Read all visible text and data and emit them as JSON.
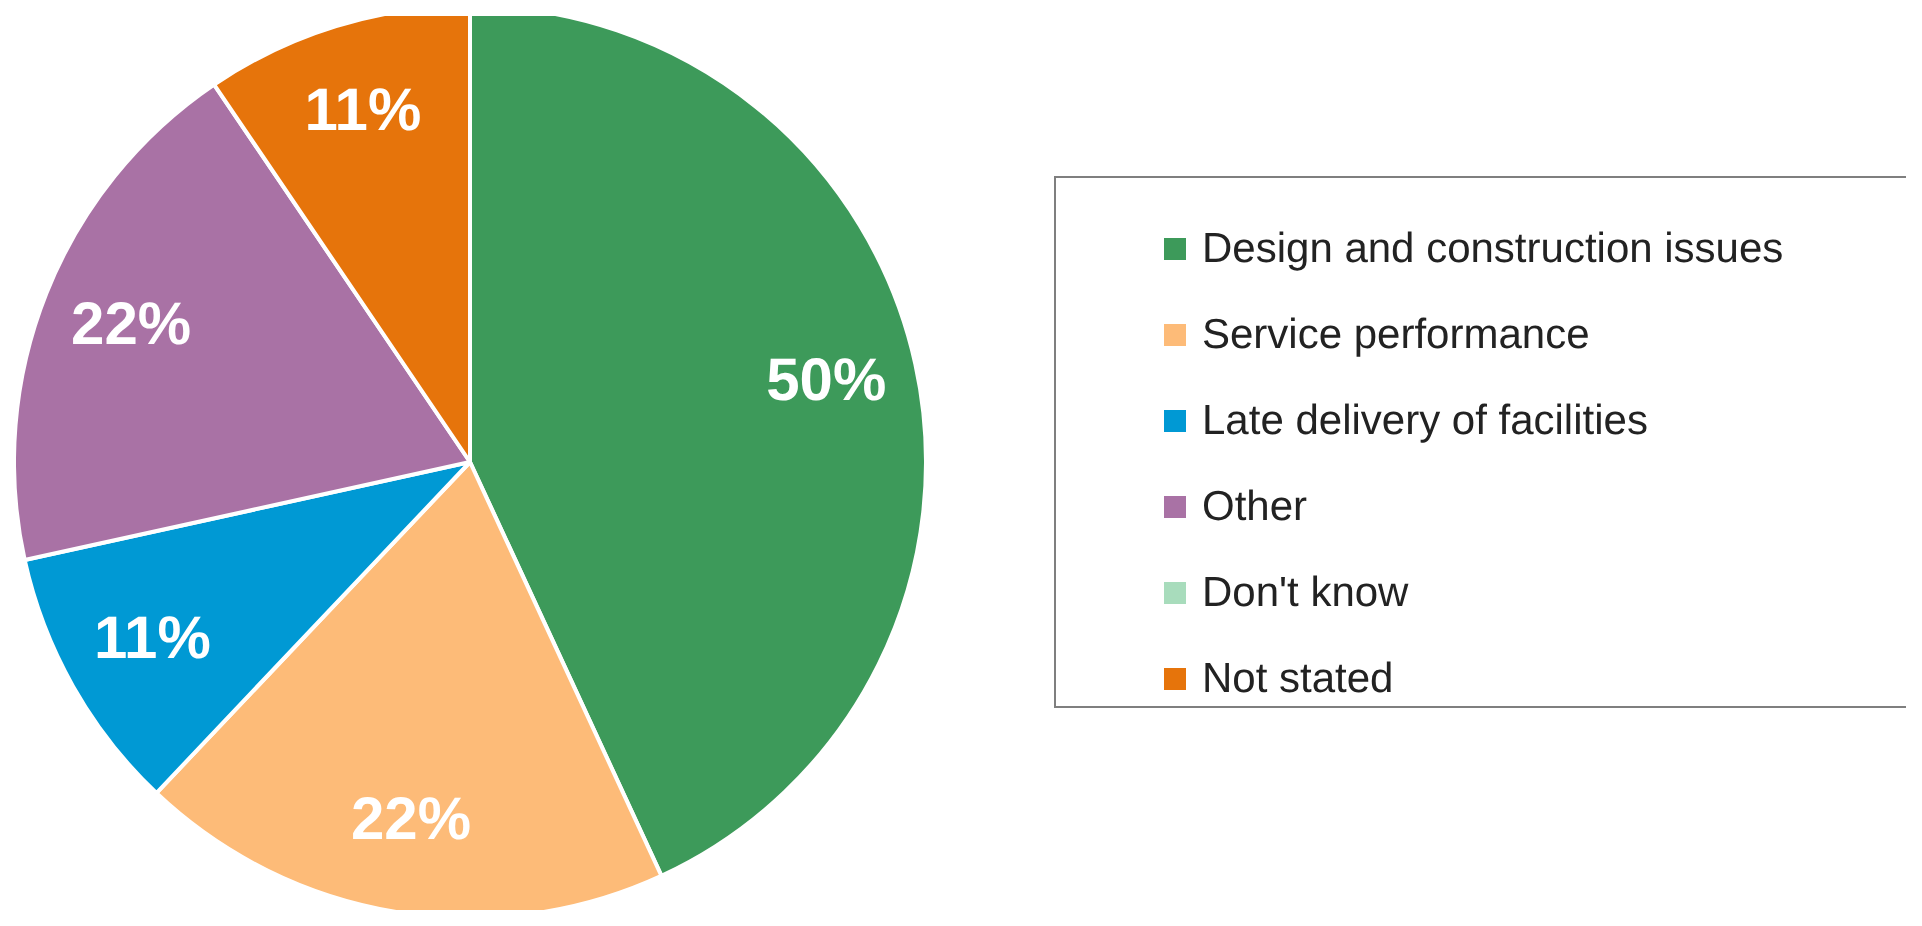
{
  "chart_data": {
    "type": "pie",
    "categories": [
      "Design and construction issues",
      "Service performance",
      "Late delivery of facilities",
      "Other",
      "Don't know",
      "Not stated"
    ],
    "values": [
      50,
      22,
      11,
      22,
      0,
      11
    ],
    "colors": [
      "#3d9a5a",
      "#fdbb78",
      "#0099d4",
      "#a972a5",
      "#a8dcbc",
      "#e6740b"
    ],
    "value_labels": [
      "50%",
      "22%",
      "11%",
      "22%",
      null,
      "11%"
    ],
    "legend": "right"
  }
}
